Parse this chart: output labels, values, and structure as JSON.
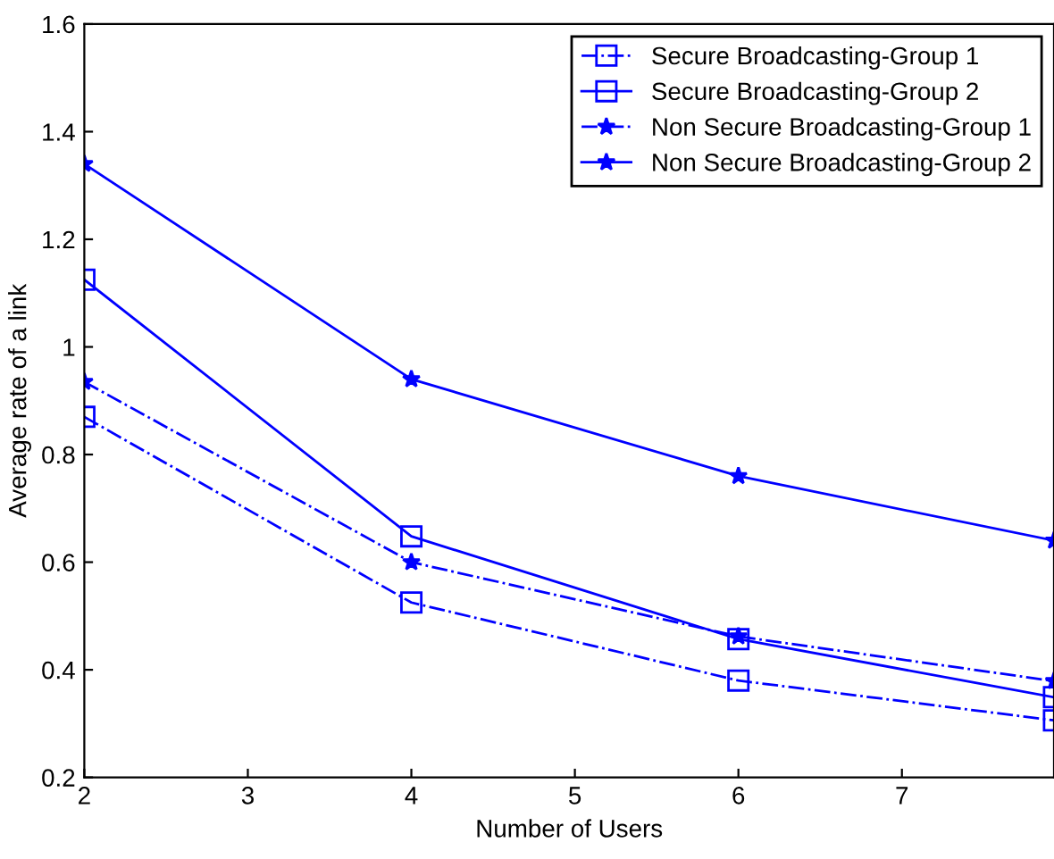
{
  "chart_data": {
    "type": "line",
    "xlabel": "Number of Users",
    "ylabel": "Average rate of a link",
    "x": [
      2,
      4,
      6,
      7.93
    ],
    "xlim": [
      2,
      7.93
    ],
    "xticks": [
      2,
      3,
      4,
      5,
      6,
      7
    ],
    "ylim": [
      0.2,
      1.6
    ],
    "yticks": [
      0.2,
      0.4,
      0.6,
      0.8,
      1,
      1.2,
      1.4,
      1.6
    ],
    "grid": false,
    "legend": "top right",
    "series": [
      {
        "name": "Secure Broadcasting-Group 1",
        "color": "#0000ff",
        "marker": "square",
        "line_style": "dashdot",
        "values": [
          0.87,
          0.525,
          0.38,
          0.306
        ]
      },
      {
        "name": "Secure Broadcasting-Group 2",
        "color": "#0000ff",
        "marker": "square",
        "line_style": "solid",
        "values": [
          1.125,
          0.648,
          0.457,
          0.349
        ]
      },
      {
        "name": "Non Secure Broadcasting-Group 1",
        "color": "#0000ff",
        "marker": "star",
        "line_style": "dashdot",
        "values": [
          0.935,
          0.6,
          0.462,
          0.379
        ]
      },
      {
        "name": "Non Secure Broadcasting-Group 2",
        "color": "#0000ff",
        "marker": "star",
        "line_style": "solid",
        "values": [
          1.34,
          0.94,
          0.76,
          0.64
        ]
      }
    ]
  }
}
